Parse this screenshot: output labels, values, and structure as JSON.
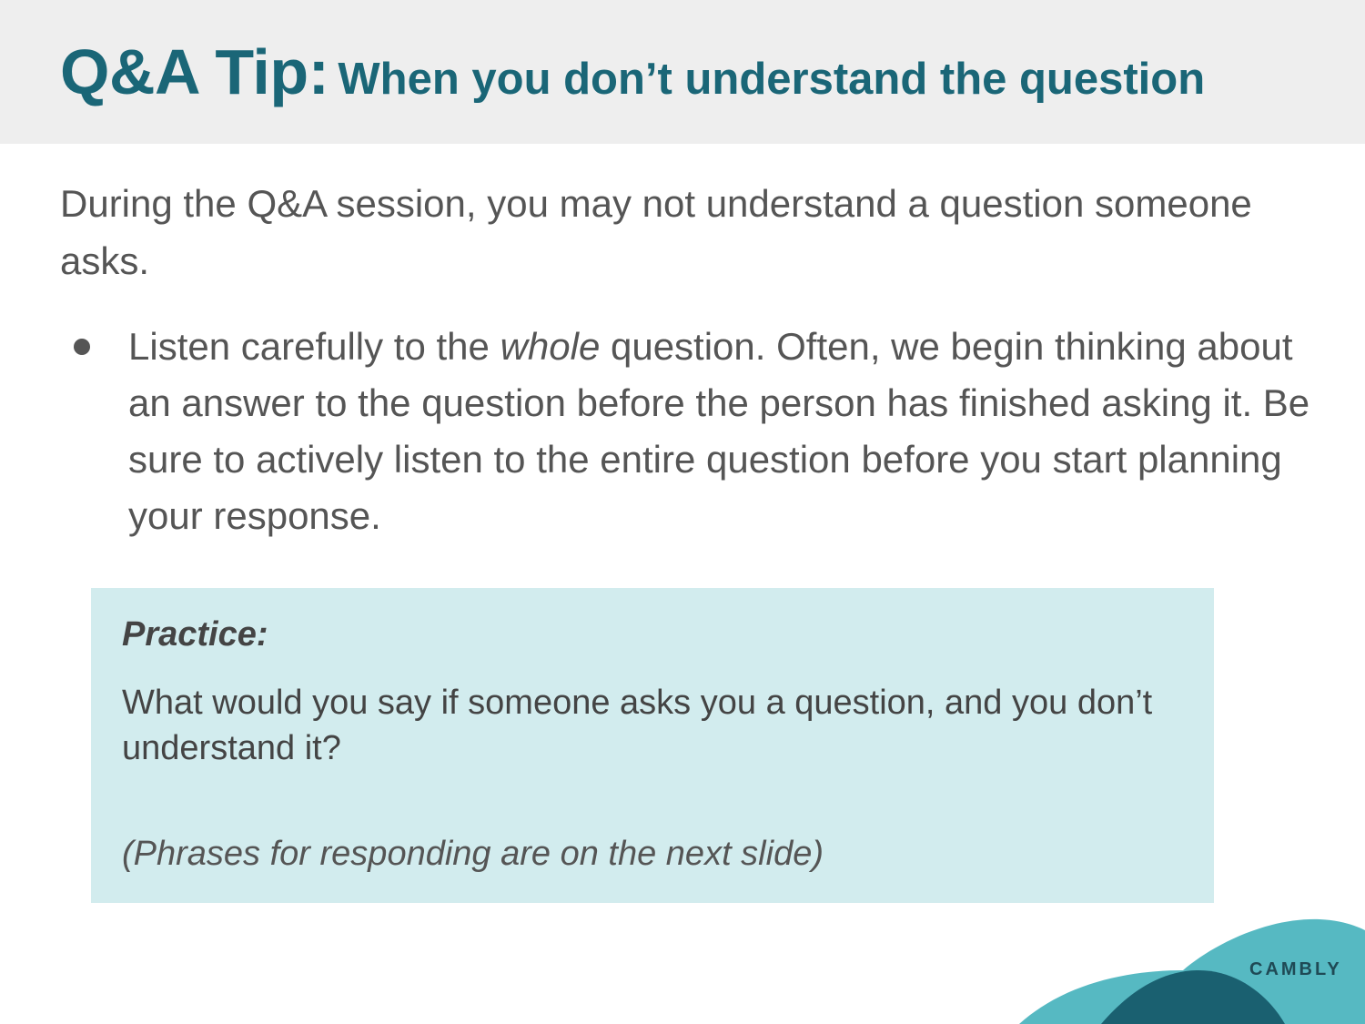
{
  "header": {
    "title_main": "Q&A Tip:",
    "title_sub": "When you don’t understand the question"
  },
  "intro": {
    "text": "During the Q&A session, you may not understand a question someone asks."
  },
  "bullets": [
    {
      "text_before": "Listen carefully to the ",
      "emphasis": "whole",
      "text_after": " question. Often, we begin thinking about an answer to the question before the person has finished asking it. Be sure to actively listen to the entire question before you start planning your response."
    }
  ],
  "practice": {
    "heading": "Practice:",
    "question": "What would you say if someone asks you a question, and you don’t understand it?",
    "note": "(Phrases for responding are on the next slide)"
  },
  "brand": {
    "logo_text": "CAMBLY"
  },
  "colors": {
    "header_band": "#eeeeee",
    "title": "#1a6677",
    "body_text": "#555555",
    "practice_box": "#d2ecee",
    "wave_light": "#56b9c2",
    "wave_dark": "#1a6070"
  }
}
